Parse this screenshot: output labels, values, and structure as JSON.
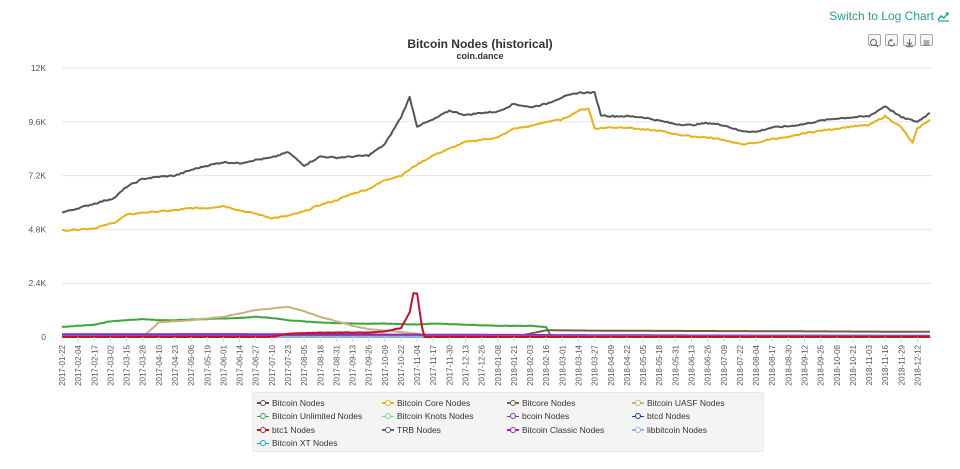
{
  "header": {
    "log_link_label": "Switch to Log Chart"
  },
  "toolbar": {
    "icons": [
      "zoom-in-icon",
      "zoom-reset-icon",
      "download-icon",
      "menu-icon"
    ]
  },
  "chart_data": {
    "type": "line",
    "title": "Bitcoin Nodes (historical)",
    "subtitle": "coin.dance",
    "xlabel": "",
    "ylabel": "",
    "ylim": [
      0,
      12000
    ],
    "y_ticks": [
      0,
      2400,
      4800,
      7200,
      9600,
      12000
    ],
    "y_tick_labels": [
      "0",
      "2.4K",
      "4.8K",
      "7.2K",
      "9.6K",
      "12K"
    ],
    "x_tick_labels": [
      "2017-01-22",
      "2017-02-04",
      "2017-02-17",
      "2017-03-02",
      "2017-03-15",
      "2017-03-28",
      "2017-04-10",
      "2017-04-23",
      "2017-05-06",
      "2017-05-19",
      "2017-06-01",
      "2017-06-14",
      "2017-06-27",
      "2017-07-10",
      "2017-07-23",
      "2017-08-05",
      "2017-08-18",
      "2017-08-31",
      "2017-09-13",
      "2017-09-26",
      "2017-10-09",
      "2017-10-22",
      "2017-11-04",
      "2017-11-17",
      "2017-11-30",
      "2017-12-13",
      "2017-12-26",
      "2018-01-08",
      "2018-01-21",
      "2018-02-03",
      "2018-02-16",
      "2018-03-01",
      "2018-03-14",
      "2018-03-27",
      "2018-04-09",
      "2018-04-22",
      "2018-05-05",
      "2018-05-18",
      "2018-05-31",
      "2018-06-13",
      "2018-06-26",
      "2018-07-09",
      "2018-07-22",
      "2018-08-04",
      "2018-08-17",
      "2018-08-30",
      "2018-09-12",
      "2018-09-25",
      "2018-10-08",
      "2018-10-21",
      "2018-11-03",
      "2018-11-16",
      "2018-11-29",
      "2018-12-12"
    ],
    "grid": true,
    "legend_position": "bottom",
    "series": [
      {
        "name": "Bitcoin Nodes",
        "color": "#555555",
        "points": [
          [
            "2017-01-22",
            5550
          ],
          [
            "2017-02-01",
            5700
          ],
          [
            "2017-02-17",
            5950
          ],
          [
            "2017-03-05",
            6200
          ],
          [
            "2017-03-15",
            6700
          ],
          [
            "2017-03-28",
            7050
          ],
          [
            "2017-04-10",
            7150
          ],
          [
            "2017-04-23",
            7200
          ],
          [
            "2017-05-06",
            7450
          ],
          [
            "2017-05-19",
            7650
          ],
          [
            "2017-06-01",
            7800
          ],
          [
            "2017-06-14",
            7750
          ],
          [
            "2017-06-27",
            7900
          ],
          [
            "2017-07-10",
            8000
          ],
          [
            "2017-07-23",
            8250
          ],
          [
            "2017-08-05",
            7650
          ],
          [
            "2017-08-18",
            8050
          ],
          [
            "2017-08-31",
            8000
          ],
          [
            "2017-09-13",
            8050
          ],
          [
            "2017-09-26",
            8100
          ],
          [
            "2017-10-09",
            8600
          ],
          [
            "2017-10-22",
            9800
          ],
          [
            "2017-10-29",
            10700
          ],
          [
            "2017-11-04",
            9400
          ],
          [
            "2017-11-17",
            9700
          ],
          [
            "2017-11-30",
            10100
          ],
          [
            "2017-12-13",
            9900
          ],
          [
            "2017-12-26",
            10000
          ],
          [
            "2018-01-08",
            10050
          ],
          [
            "2018-01-21",
            10400
          ],
          [
            "2018-02-03",
            10250
          ],
          [
            "2018-02-16",
            10400
          ],
          [
            "2018-03-01",
            10700
          ],
          [
            "2018-03-14",
            10900
          ],
          [
            "2018-03-27",
            10900
          ],
          [
            "2018-04-01",
            9900
          ],
          [
            "2018-04-09",
            9850
          ],
          [
            "2018-04-22",
            9850
          ],
          [
            "2018-05-05",
            9800
          ],
          [
            "2018-05-18",
            9650
          ],
          [
            "2018-05-31",
            9500
          ],
          [
            "2018-06-13",
            9450
          ],
          [
            "2018-06-26",
            9550
          ],
          [
            "2018-07-09",
            9450
          ],
          [
            "2018-07-22",
            9200
          ],
          [
            "2018-08-04",
            9150
          ],
          [
            "2018-08-17",
            9350
          ],
          [
            "2018-08-30",
            9400
          ],
          [
            "2018-09-12",
            9500
          ],
          [
            "2018-09-25",
            9650
          ],
          [
            "2018-10-08",
            9750
          ],
          [
            "2018-10-21",
            9800
          ],
          [
            "2018-11-03",
            9850
          ],
          [
            "2018-11-16",
            10300
          ],
          [
            "2018-11-29",
            9800
          ],
          [
            "2018-12-12",
            9600
          ],
          [
            "2018-12-22",
            10000
          ]
        ]
      },
      {
        "name": "Bitcoin Core Nodes",
        "color": "#e6b21a",
        "points": [
          [
            "2017-01-22",
            4750
          ],
          [
            "2017-02-17",
            4850
          ],
          [
            "2017-03-05",
            5100
          ],
          [
            "2017-03-15",
            5450
          ],
          [
            "2017-03-28",
            5550
          ],
          [
            "2017-04-10",
            5600
          ],
          [
            "2017-04-23",
            5650
          ],
          [
            "2017-05-06",
            5750
          ],
          [
            "2017-05-19",
            5750
          ],
          [
            "2017-06-01",
            5850
          ],
          [
            "2017-06-14",
            5650
          ],
          [
            "2017-06-27",
            5500
          ],
          [
            "2017-07-10",
            5300
          ],
          [
            "2017-07-23",
            5400
          ],
          [
            "2017-08-05",
            5600
          ],
          [
            "2017-08-18",
            5900
          ],
          [
            "2017-08-31",
            6100
          ],
          [
            "2017-09-13",
            6400
          ],
          [
            "2017-09-26",
            6600
          ],
          [
            "2017-10-09",
            7000
          ],
          [
            "2017-10-22",
            7200
          ],
          [
            "2017-11-04",
            7700
          ],
          [
            "2017-11-17",
            8100
          ],
          [
            "2017-11-30",
            8400
          ],
          [
            "2017-12-13",
            8700
          ],
          [
            "2017-12-26",
            8800
          ],
          [
            "2018-01-08",
            8900
          ],
          [
            "2018-01-21",
            9300
          ],
          [
            "2018-02-03",
            9400
          ],
          [
            "2018-02-16",
            9600
          ],
          [
            "2018-03-01",
            9700
          ],
          [
            "2018-03-14",
            10100
          ],
          [
            "2018-03-22",
            10200
          ],
          [
            "2018-03-27",
            9300
          ],
          [
            "2018-04-09",
            9350
          ],
          [
            "2018-04-22",
            9350
          ],
          [
            "2018-05-05",
            9250
          ],
          [
            "2018-05-18",
            9200
          ],
          [
            "2018-05-31",
            9050
          ],
          [
            "2018-06-13",
            8950
          ],
          [
            "2018-06-26",
            8900
          ],
          [
            "2018-07-09",
            8800
          ],
          [
            "2018-07-22",
            8600
          ],
          [
            "2018-08-04",
            8650
          ],
          [
            "2018-08-17",
            8850
          ],
          [
            "2018-08-30",
            8900
          ],
          [
            "2018-09-12",
            9100
          ],
          [
            "2018-09-25",
            9200
          ],
          [
            "2018-10-08",
            9300
          ],
          [
            "2018-10-21",
            9400
          ],
          [
            "2018-11-03",
            9450
          ],
          [
            "2018-11-16",
            9850
          ],
          [
            "2018-11-29",
            9350
          ],
          [
            "2018-12-08",
            8650
          ],
          [
            "2018-12-12",
            9300
          ],
          [
            "2018-12-22",
            9700
          ]
        ]
      },
      {
        "name": "Bitcore Nodes",
        "color": "#7a5a4e",
        "points": [
          [
            "2017-01-22",
            0
          ],
          [
            "2018-01-21",
            0
          ],
          [
            "2018-02-03",
            150
          ],
          [
            "2018-02-16",
            300
          ],
          [
            "2018-04-09",
            280
          ],
          [
            "2018-08-04",
            260
          ],
          [
            "2018-12-22",
            230
          ]
        ]
      },
      {
        "name": "Bitcoin UASF Nodes",
        "color": "#c8b27a",
        "points": [
          [
            "2017-01-22",
            0
          ],
          [
            "2017-03-28",
            0
          ],
          [
            "2017-04-10",
            650
          ],
          [
            "2017-05-06",
            750
          ],
          [
            "2017-06-01",
            900
          ],
          [
            "2017-06-27",
            1200
          ],
          [
            "2017-07-23",
            1350
          ],
          [
            "2017-08-05",
            1150
          ],
          [
            "2017-08-18",
            900
          ],
          [
            "2017-08-31",
            700
          ],
          [
            "2017-09-13",
            500
          ],
          [
            "2017-09-26",
            350
          ],
          [
            "2017-10-09",
            300
          ],
          [
            "2017-11-04",
            150
          ],
          [
            "2017-11-17",
            0
          ],
          [
            "2018-12-22",
            0
          ]
        ]
      },
      {
        "name": "Bitcoin Unlimited Nodes",
        "color": "#3aa53a",
        "points": [
          [
            "2017-01-22",
            450
          ],
          [
            "2017-02-17",
            550
          ],
          [
            "2017-03-02",
            700
          ],
          [
            "2017-03-15",
            750
          ],
          [
            "2017-03-28",
            800
          ],
          [
            "2017-04-10",
            750
          ],
          [
            "2017-04-23",
            750
          ],
          [
            "2017-05-06",
            780
          ],
          [
            "2017-05-19",
            800
          ],
          [
            "2017-06-14",
            850
          ],
          [
            "2017-06-27",
            900
          ],
          [
            "2017-07-10",
            850
          ],
          [
            "2017-07-23",
            750
          ],
          [
            "2017-08-05",
            700
          ],
          [
            "2017-08-18",
            650
          ],
          [
            "2017-09-13",
            600
          ],
          [
            "2017-10-09",
            600
          ],
          [
            "2017-11-04",
            550
          ],
          [
            "2017-11-17",
            600
          ],
          [
            "2017-12-13",
            550
          ],
          [
            "2018-01-08",
            500
          ],
          [
            "2018-02-03",
            500
          ],
          [
            "2018-02-16",
            450
          ],
          [
            "2018-02-20",
            0
          ],
          [
            "2018-12-22",
            0
          ]
        ]
      },
      {
        "name": "Bitcoin Knots Nodes",
        "color": "#7ad97a",
        "points": [
          [
            "2017-01-22",
            15
          ],
          [
            "2018-12-22",
            15
          ]
        ]
      },
      {
        "name": "bcoin Nodes",
        "color": "#6b3fa0",
        "points": [
          [
            "2017-01-22",
            8
          ],
          [
            "2018-12-22",
            8
          ]
        ]
      },
      {
        "name": "btcd Nodes",
        "color": "#223a8a",
        "points": [
          [
            "2017-01-22",
            60
          ],
          [
            "2018-12-22",
            60
          ]
        ]
      },
      {
        "name": "btc1 Nodes",
        "color": "#c8102e",
        "points": [
          [
            "2017-01-22",
            0
          ],
          [
            "2017-07-10",
            0
          ],
          [
            "2017-07-23",
            150
          ],
          [
            "2017-08-18",
            200
          ],
          [
            "2017-09-26",
            200
          ],
          [
            "2017-10-09",
            250
          ],
          [
            "2017-10-22",
            400
          ],
          [
            "2017-10-29",
            1100
          ],
          [
            "2017-11-01",
            1950
          ],
          [
            "2017-11-04",
            1950
          ],
          [
            "2017-11-08",
            400
          ],
          [
            "2017-11-10",
            0
          ],
          [
            "2018-12-22",
            0
          ]
        ]
      },
      {
        "name": "TRB Nodes",
        "color": "#666666",
        "points": [
          [
            "2017-01-22",
            3
          ],
          [
            "2018-12-22",
            3
          ]
        ]
      },
      {
        "name": "Bitcoin Classic Nodes",
        "color": "#a020c0",
        "points": [
          [
            "2017-01-22",
            120
          ],
          [
            "2017-06-01",
            130
          ],
          [
            "2017-10-09",
            110
          ],
          [
            "2018-02-03",
            90
          ],
          [
            "2018-08-04",
            60
          ],
          [
            "2018-12-22",
            40
          ]
        ]
      },
      {
        "name": "libbitcoin Nodes",
        "color": "#8fb8e0",
        "points": [
          [
            "2017-01-22",
            5
          ],
          [
            "2018-12-22",
            5
          ]
        ]
      },
      {
        "name": "Bitcoin XT Nodes",
        "color": "#1aa0d8",
        "points": [
          [
            "2017-01-22",
            30
          ],
          [
            "2017-10-09",
            20
          ],
          [
            "2018-12-22",
            10
          ]
        ]
      }
    ]
  }
}
